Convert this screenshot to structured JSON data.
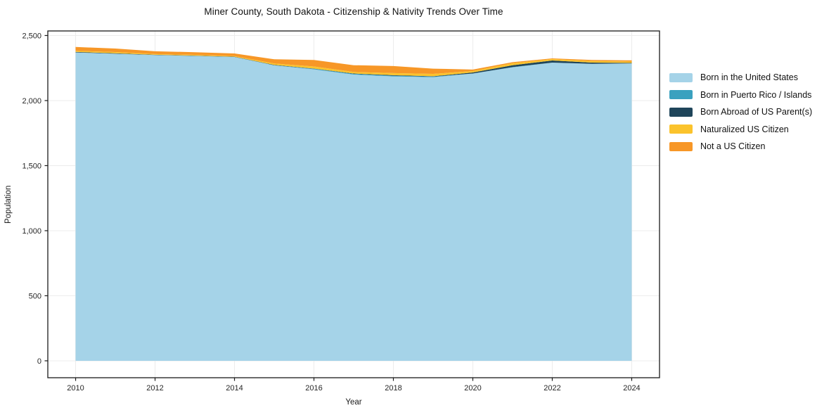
{
  "chart_data": {
    "type": "area",
    "stacked": true,
    "title": "Miner County, South Dakota - Citizenship & Nativity Trends Over Time",
    "xlabel": "Year",
    "ylabel": "Population",
    "x": [
      2010,
      2011,
      2012,
      2013,
      2014,
      2015,
      2016,
      2017,
      2018,
      2019,
      2020,
      2021,
      2022,
      2023,
      2024
    ],
    "series": [
      {
        "name": "Born in the United States",
        "color": "#A5D3E8",
        "values": [
          2370,
          2360,
          2350,
          2343,
          2335,
          2270,
          2240,
          2200,
          2186,
          2180,
          2208,
          2255,
          2292,
          2282,
          2286
        ]
      },
      {
        "name": "Born in Puerto Rico / Islands",
        "color": "#3AA1BF",
        "values": [
          0,
          0,
          0,
          0,
          0,
          2,
          4,
          5,
          5,
          4,
          0,
          2,
          0,
          0,
          0
        ]
      },
      {
        "name": "Born Abroad of US Parent(s)",
        "color": "#1F455A",
        "values": [
          4,
          3,
          2,
          2,
          2,
          2,
          2,
          3,
          4,
          3,
          8,
          15,
          16,
          10,
          3
        ]
      },
      {
        "name": "Naturalized US Citizen",
        "color": "#FBC32C",
        "values": [
          8,
          10,
          5,
          6,
          5,
          11,
          16,
          12,
          16,
          18,
          11,
          15,
          11,
          12,
          11
        ]
      },
      {
        "name": "Not a US Citizen",
        "color": "#F79727",
        "values": [
          30,
          27,
          22,
          21,
          20,
          32,
          50,
          52,
          54,
          40,
          11,
          8,
          5,
          8,
          9
        ]
      }
    ],
    "xlim": [
      2009.3,
      2024.7
    ],
    "ylim": [
      -130,
      2535
    ],
    "x_ticks": [
      2010,
      2012,
      2014,
      2016,
      2018,
      2020,
      2022,
      2024
    ],
    "y_ticks": [
      0,
      500,
      1000,
      1500,
      2000,
      2500
    ],
    "y_tick_labels": [
      "0",
      "500",
      "1,000",
      "1,500",
      "2,000",
      "2,500"
    ],
    "grid": true,
    "legend_position": "right of plot, vertical"
  },
  "colors": {
    "axis": "#1a1a1a",
    "grid": "#ececec",
    "tick_text": "#262626"
  }
}
